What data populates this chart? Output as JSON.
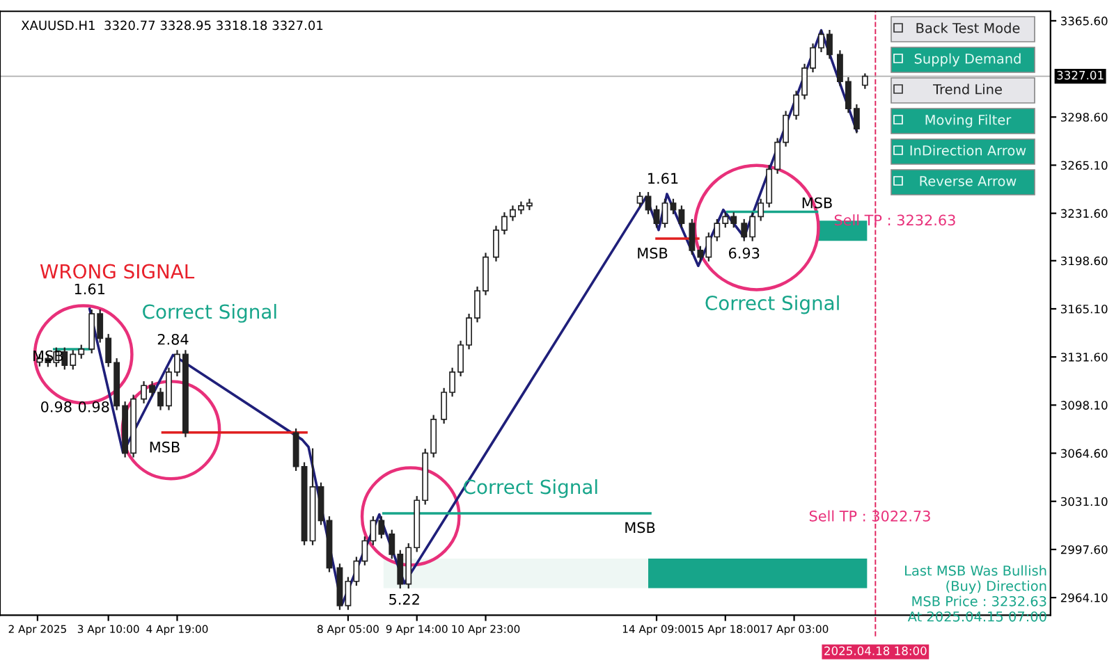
{
  "chart_data": {
    "type": "candlestick",
    "title": "XAUUSD.H1  3320.77 3328.95 3318.18 3327.01",
    "x": [
      "2025-04-02T01:00",
      "2025-04-02T05:00",
      "2025-04-02T09:00",
      "2025-04-02T13:00",
      "2025-04-02T17:00",
      "2025-04-02T21:00",
      "2025-04-03T02:00",
      "2025-04-03T06:00",
      "2025-04-03T10:00",
      "2025-04-03T14:00",
      "2025-04-03T18:00",
      "2025-04-03T22:00",
      "2025-04-04T03:00",
      "2025-04-04T07:00",
      "2025-04-04T11:00",
      "2025-04-04T15:00",
      "2025-04-04T19:00",
      "2025-04-04T23:00",
      "2025-04-07T04:00",
      "2025-04-07T08:00",
      "2025-04-07T12:00",
      "2025-04-07T16:00",
      "2025-04-07T20:00",
      "2025-04-08T01:00",
      "2025-04-08T05:00",
      "2025-04-08T09:00",
      "2025-04-08T13:00",
      "2025-04-08T17:00",
      "2025-04-08T21:00",
      "2025-04-09T02:00",
      "2025-04-09T06:00",
      "2025-04-09T10:00",
      "2025-04-09T14:00",
      "2025-04-09T18:00",
      "2025-04-09T22:00",
      "2025-04-10T03:00",
      "2025-04-10T07:00",
      "2025-04-10T11:00",
      "2025-04-10T15:00",
      "2025-04-10T19:00",
      "2025-04-10T23:00",
      "2025-04-11T04:00",
      "2025-04-11T08:00",
      "2025-04-11T12:00",
      "2025-04-11T16:00",
      "2025-04-11T20:00",
      "2025-04-14T01:00",
      "2025-04-14T05:00",
      "2025-04-14T09:00",
      "2025-04-14T13:00",
      "2025-04-14T17:00",
      "2025-04-14T21:00",
      "2025-04-15T02:00",
      "2025-04-15T06:00",
      "2025-04-15T10:00",
      "2025-04-15T14:00",
      "2025-04-15T18:00",
      "2025-04-15T22:00",
      "2025-04-16T03:00",
      "2025-04-16T07:00",
      "2025-04-16T11:00",
      "2025-04-16T15:00",
      "2025-04-16T19:00",
      "2025-04-16T23:00",
      "2025-04-17T04:00",
      "2025-04-17T08:00",
      "2025-04-17T12:00",
      "2025-04-17T16:00",
      "2025-04-17T20:00",
      "2025-04-18T01:00",
      "2025-04-18T05:00",
      "2025-04-18T09:00",
      "2025-04-18T13:00"
    ],
    "color": "#222222",
    "ohlc": [
      [
        3128.0,
        3133.5,
        3125.0,
        3130.5
      ],
      [
        3130.5,
        3133.5,
        3124.7,
        3127.7
      ],
      [
        3127.7,
        3138.2,
        3124.7,
        3135.2
      ],
      [
        3135.2,
        3138.2,
        3122.8,
        3125.8
      ],
      [
        3125.8,
        3136.4,
        3122.8,
        3133.4
      ],
      [
        3133.4,
        3140.1,
        3130.4,
        3137.1
      ],
      [
        3137.1,
        3164.6,
        3134.1,
        3161.6
      ],
      [
        3161.6,
        3164.6,
        3141.6,
        3144.6
      ],
      [
        3144.6,
        3147.6,
        3124.7,
        3127.7
      ],
      [
        3127.7,
        3130.7,
        3094.6,
        3097.6
      ],
      [
        3097.6,
        3100.6,
        3061.7,
        3064.7
      ],
      [
        3064.7,
        3105.3,
        3061.7,
        3102.3
      ],
      [
        3102.3,
        3114.7,
        3099.3,
        3111.7
      ],
      [
        3111.7,
        3114.7,
        3104.0,
        3107.0
      ],
      [
        3107.0,
        3110.0,
        3094.6,
        3097.6
      ],
      [
        3097.6,
        3124.1,
        3094.6,
        3121.1
      ],
      [
        3121.1,
        3136.4,
        3118.1,
        3133.4
      ],
      [
        3133.4,
        3136.4,
        3075.8,
        3078.8
      ],
      [
        3078.8,
        3081.8,
        3052.3,
        3055.3
      ],
      [
        3055.3,
        3058.3,
        3000.6,
        3003.6
      ],
      [
        3003.6,
        3068.0,
        3000.6,
        3041.2
      ],
      [
        3041.2,
        3044.2,
        3014.7,
        3017.7
      ],
      [
        3017.7,
        3020.7,
        2981.8,
        2984.8
      ],
      [
        2984.8,
        2987.8,
        2955.5,
        2958.5
      ],
      [
        2958.5,
        2978.4,
        2955.5,
        2975.4
      ],
      [
        2975.4,
        2992.5,
        2972.4,
        2989.5
      ],
      [
        2989.5,
        3006.6,
        2986.5,
        3003.6
      ],
      [
        3003.6,
        3020.7,
        3000.6,
        3017.7
      ],
      [
        3017.7,
        3020.7,
        3005.3,
        3008.3
      ],
      [
        3008.3,
        3011.3,
        2991.2,
        2994.2
      ],
      [
        2994.2,
        2997.2,
        2970.5,
        2973.5
      ],
      [
        2973.5,
        3001.9,
        2970.5,
        2998.9
      ],
      [
        2998.9,
        3034.8,
        2995.9,
        3031.8
      ],
      [
        3031.8,
        3067.7,
        3028.8,
        3064.7
      ],
      [
        3064.7,
        3091.2,
        3061.7,
        3088.2
      ],
      [
        3088.2,
        3110.0,
        3085.2,
        3107.0
      ],
      [
        3107.0,
        3124.1,
        3104.0,
        3121.1
      ],
      [
        3121.1,
        3142.9,
        3118.1,
        3139.9
      ],
      [
        3139.9,
        3161.7,
        3136.9,
        3158.7
      ],
      [
        3158.7,
        3180.6,
        3155.7,
        3177.6
      ],
      [
        3177.6,
        3204.1,
        3174.6,
        3201.1
      ],
      [
        3201.1,
        3222.9,
        3198.1,
        3219.9
      ],
      [
        3219.9,
        3232.3,
        3216.9,
        3229.3
      ],
      [
        3229.3,
        3237.0,
        3226.3,
        3234.0
      ],
      [
        3234.0,
        3239.8,
        3231.0,
        3236.8
      ],
      [
        3236.8,
        3241.7,
        3233.8,
        3238.7
      ],
      [
        3238.7,
        3246.4,
        3235.7,
        3243.4
      ],
      [
        3243.4,
        3246.4,
        3231.0,
        3234.0
      ],
      [
        3234.0,
        3237.0,
        3221.6,
        3224.6
      ],
      [
        3224.6,
        3241.7,
        3221.6,
        3238.7
      ],
      [
        3238.7,
        3241.7,
        3231.0,
        3234.0
      ],
      [
        3234.0,
        3237.0,
        3221.6,
        3224.6
      ],
      [
        3224.6,
        3227.6,
        3202.8,
        3205.8
      ],
      [
        3205.8,
        3208.8,
        3198.1,
        3201.1
      ],
      [
        3201.1,
        3218.2,
        3198.1,
        3215.2
      ],
      [
        3215.2,
        3227.6,
        3212.2,
        3224.6
      ],
      [
        3224.6,
        3232.3,
        3221.6,
        3229.3
      ],
      [
        3229.3,
        3232.3,
        3221.6,
        3224.6
      ],
      [
        3224.6,
        3227.6,
        3212.2,
        3215.2
      ],
      [
        3215.2,
        3232.3,
        3212.2,
        3229.3
      ],
      [
        3229.3,
        3241.7,
        3226.3,
        3238.7
      ],
      [
        3238.7,
        3265.2,
        3235.7,
        3262.2
      ],
      [
        3262.2,
        3284.0,
        3259.2,
        3281.0
      ],
      [
        3281.0,
        3302.8,
        3278.0,
        3299.8
      ],
      [
        3299.8,
        3316.9,
        3296.8,
        3313.9
      ],
      [
        3313.9,
        3335.7,
        3310.9,
        3332.7
      ],
      [
        3332.7,
        3349.8,
        3329.7,
        3346.8
      ],
      [
        3346.8,
        3359.2,
        3343.8,
        3356.2
      ],
      [
        3356.2,
        3359.2,
        3339.1,
        3342.1
      ],
      [
        3342.1,
        3345.1,
        3320.3,
        3323.3
      ],
      [
        3323.3,
        3326.3,
        3301.5,
        3304.5
      ],
      [
        3304.5,
        3307.5,
        3287.4,
        3290.4
      ],
      [
        3320.77,
        3328.95,
        3318.18,
        3327.01
      ]
    ],
    "series": [
      {
        "type": "line",
        "color": "#1f1f7a",
        "x": [
          "2025-04-03T01:00",
          "2025-04-03T17:00",
          "2025-04-04T17:00",
          "2025-04-07T07:00",
          "2025-04-07T10:00",
          "2025-04-08T02:00",
          "2025-04-08T20:00",
          "2025-04-09T08:00",
          "2025-04-14T04:00",
          "2025-04-14T10:00",
          "2025-04-14T14:00",
          "2025-04-15T05:00",
          "2025-04-15T17:00",
          "2025-04-16T03:00",
          "2025-04-17T16:00",
          "2025-04-18T09:00"
        ],
        "values": [
          3165,
          3065,
          3133,
          3074,
          3069,
          2959,
          3022,
          2974,
          3243,
          3220,
          3245,
          3195,
          3234,
          3215,
          3359,
          3289
        ]
      },
      {
        "type": "line",
        "color": "#17a58a",
        "x": [
          "2025-04-02T08:00",
          "2025-04-03T01:00"
        ],
        "values": [
          3137,
          3137
        ]
      },
      {
        "type": "line",
        "color": "#17a58a",
        "x": [
          "2025-04-08T22:00",
          "2025-04-14T06:00"
        ],
        "values": [
          3022.73,
          3022.73
        ]
      },
      {
        "type": "line",
        "color": "#17a58a",
        "x": [
          "2025-04-15T19:00",
          "2025-04-17T14:00"
        ],
        "values": [
          3232.63,
          3232.63
        ]
      },
      {
        "type": "line",
        "color": "#e02020",
        "x": [
          "2025-04-04T12:00",
          "2025-04-07T09:00"
        ],
        "values": [
          3079,
          3079
        ]
      },
      {
        "type": "line",
        "color": "#e02020",
        "x": [
          "2025-04-14T09:00",
          "2025-04-15T05:00"
        ],
        "values": [
          3214,
          3214
        ]
      }
    ],
    "annotations": [
      "WRONG SIGNAL",
      "Correct Signal",
      "Correct Signal",
      "Correct Signal",
      "Sell TP : 3232.63",
      "Sell TP : 3022.73",
      "Last MSB Was Bullish",
      "(Buy) Direction",
      "MSB Price : 3232.63",
      "At 2025.04.15 07:00",
      "Back Test Mode",
      "Supply Demand",
      "Trend Line",
      "Moving Filter",
      "InDirection Arrow",
      "Reverse Arrow",
      "1.61",
      "0.98",
      "0.98",
      "MSB",
      "2.84",
      "MSB",
      "5.22",
      "MSB",
      "1.61",
      "MSB",
      "6.93",
      "MSB"
    ],
    "ref_lines": [
      {
        "axis": "x",
        "value": "2025-04-18T18:00",
        "label": "2025.04.18 18:00",
        "color": "#e0245e",
        "line_style": "dashed"
      },
      {
        "axis": "y",
        "value": 3327.01,
        "label": "3327.01",
        "color": "#b0b0b0"
      }
    ],
    "xlim": [
      "2025-04-01T06:00",
      "2025-04-22T06:00"
    ],
    "ylim": [
      2951.9,
      3372.2
    ],
    "xticks": [
      {
        "value": "2025-04-02T00:00",
        "label": "2 Apr 2025"
      },
      {
        "value": "2025-04-03T10:00",
        "label": "3 Apr 10:00"
      },
      {
        "value": "2025-04-04T19:00",
        "label": "4 Apr 19:00"
      },
      {
        "value": "2025-04-08T05:00",
        "label": "8 Apr 05:00"
      },
      {
        "value": "2025-04-09T14:00",
        "label": "9 Apr 14:00"
      },
      {
        "value": "2025-04-10T23:00",
        "label": "10 Apr 23:00"
      },
      {
        "value": "2025-04-14T09:00",
        "label": "14 Apr 09:00"
      },
      {
        "value": "2025-04-15T18:00",
        "label": "15 Apr 18:00"
      },
      {
        "value": "2025-04-17T03:00",
        "label": "17 Apr 03:00"
      }
    ],
    "yticks": [
      {
        "value": 2964.1,
        "label": "2964.10"
      },
      {
        "value": 2997.6,
        "label": "2997.60"
      },
      {
        "value": 3031.1,
        "label": "3031.10"
      },
      {
        "value": 3064.6,
        "label": "3064.60"
      },
      {
        "value": 3098.1,
        "label": "3098.10"
      },
      {
        "value": 3131.6,
        "label": "3131.60"
      },
      {
        "value": 3165.1,
        "label": "3165.10"
      },
      {
        "value": 3198.6,
        "label": "3198.60"
      },
      {
        "value": 3231.6,
        "label": "3231.60"
      },
      {
        "value": 3265.1,
        "label": "3265.10"
      },
      {
        "value": 3298.6,
        "label": "3298.60"
      },
      {
        "value": 3365.6,
        "label": "3365.60"
      }
    ],
    "grid": false,
    "legend": false
  }
}
